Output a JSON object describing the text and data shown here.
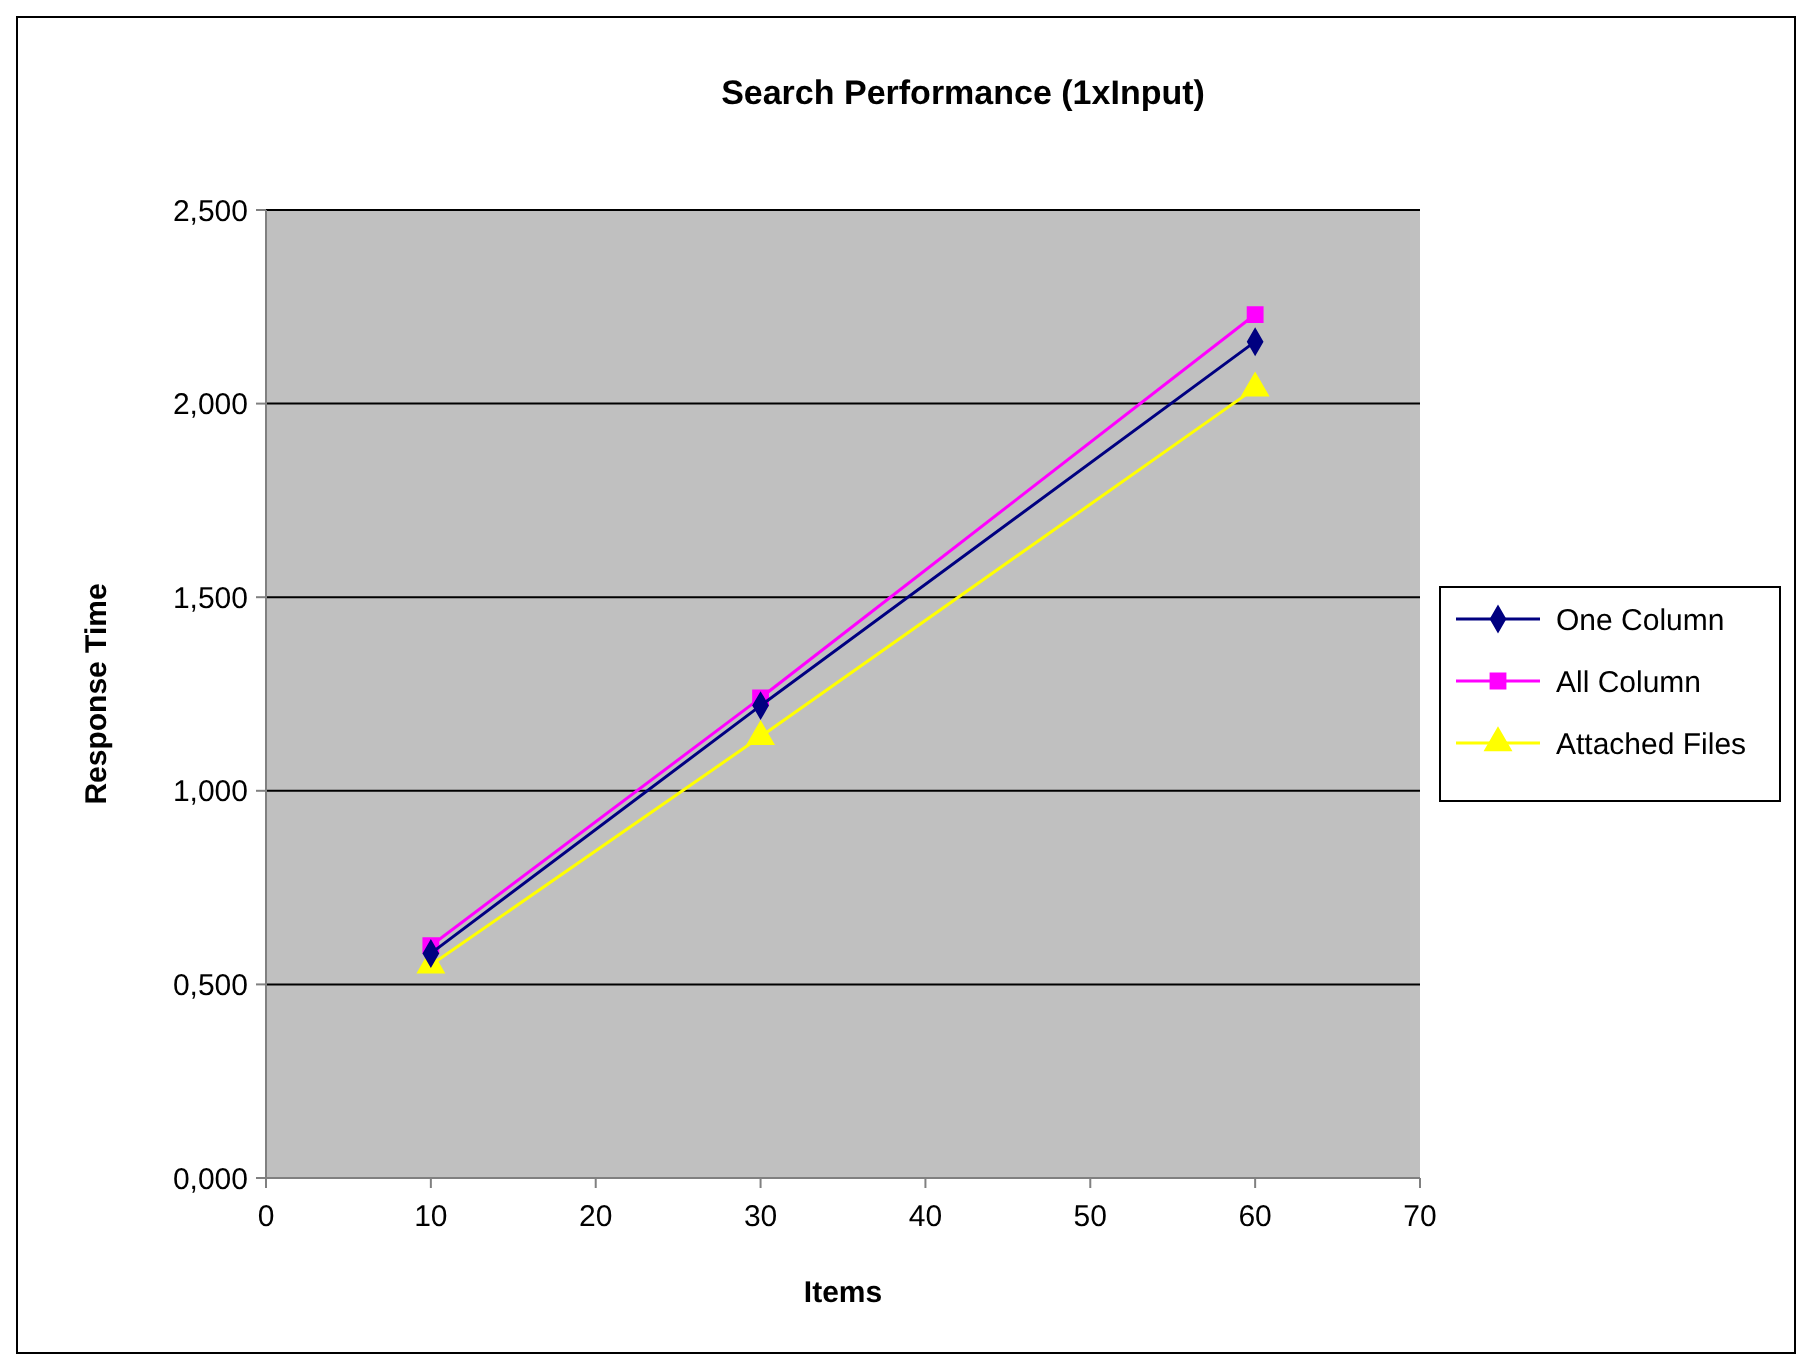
{
  "chart_data": {
    "type": "line",
    "title": "Search Performance (1xInput)",
    "xlabel": "Items",
    "ylabel": "Response Time",
    "x": [
      10,
      30,
      60
    ],
    "series": [
      {
        "name": "One Column",
        "color": "#000080",
        "marker": "diamond",
        "values": [
          0.58,
          1.22,
          2.16
        ]
      },
      {
        "name": "All Column",
        "color": "#ff00ff",
        "marker": "square",
        "values": [
          0.6,
          1.24,
          2.23
        ]
      },
      {
        "name": "Attached Files",
        "color": "#ffff00",
        "marker": "triangle",
        "values": [
          0.55,
          1.14,
          2.04
        ]
      }
    ],
    "xlim": [
      0,
      70
    ],
    "xticks": [
      0,
      10,
      20,
      30,
      40,
      50,
      60,
      70
    ],
    "ylim": [
      0,
      2.5
    ],
    "yticks": [
      {
        "value": 0,
        "label": "0,000"
      },
      {
        "value": 0.5,
        "label": "0,500"
      },
      {
        "value": 1,
        "label": "1,000"
      },
      {
        "value": 1.5,
        "label": "1,500"
      },
      {
        "value": 2,
        "label": "2,000"
      },
      {
        "value": 2.5,
        "label": "2,500"
      }
    ],
    "grid": "y",
    "legend": "right",
    "line_style": "solid"
  }
}
